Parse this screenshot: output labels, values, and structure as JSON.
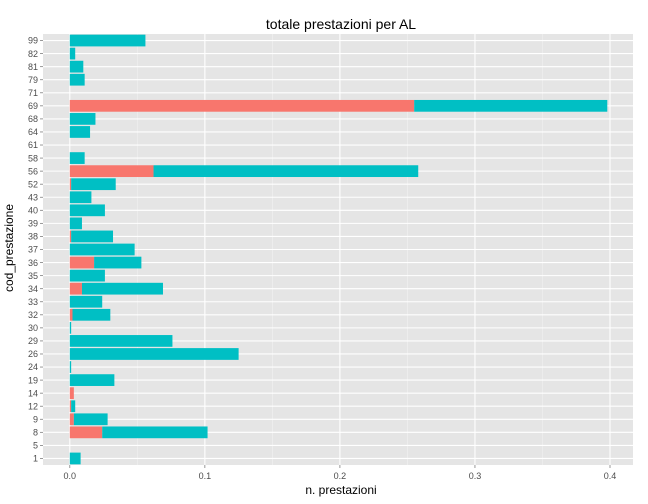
{
  "chart_data": {
    "type": "bar",
    "orientation": "horizontal",
    "stacked": true,
    "title": "totale prestazioni per AL",
    "xlabel": "n. prestazioni",
    "ylabel": "cod_prestazione",
    "xlim": [
      0,
      0.4
    ],
    "x_ticks": [
      "0.0",
      "0.1",
      "0.2",
      "0.3",
      "0.4"
    ],
    "grid": true,
    "legend": "none",
    "categories": [
      "1",
      "5",
      "8",
      "9",
      "12",
      "14",
      "19",
      "24",
      "26",
      "29",
      "30",
      "32",
      "33",
      "34",
      "35",
      "36",
      "37",
      "38",
      "39",
      "40",
      "43",
      "52",
      "56",
      "58",
      "61",
      "64",
      "68",
      "69",
      "71",
      "79",
      "81",
      "82",
      "99"
    ],
    "series": [
      {
        "color": "#F8766D",
        "values": [
          0,
          0,
          0.024,
          0.003,
          0.001,
          0.003,
          0,
          0,
          0,
          0,
          0,
          0.002,
          0,
          0.009,
          0,
          0.018,
          0,
          0.001,
          0,
          0,
          0,
          0.001,
          0.062,
          0,
          0,
          0,
          0,
          0.255,
          0,
          0,
          0,
          0,
          0
        ]
      },
      {
        "color": "#00BFC4",
        "values": [
          0.008,
          0,
          0.078,
          0.025,
          0.003,
          0,
          0.033,
          0.001,
          0.125,
          0.076,
          0.001,
          0.028,
          0.024,
          0.06,
          0.026,
          0.035,
          0.048,
          0.031,
          0.009,
          0.026,
          0.016,
          0.033,
          0.196,
          0.011,
          0,
          0.015,
          0.019,
          0.143,
          0,
          0.011,
          0.01,
          0.004,
          0.056
        ]
      }
    ]
  }
}
